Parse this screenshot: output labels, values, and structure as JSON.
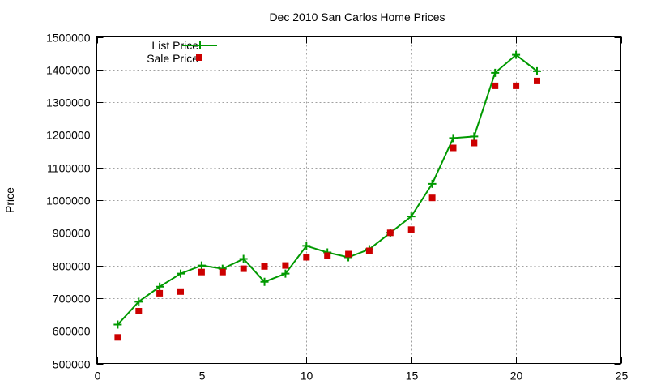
{
  "chart_data": {
    "type": "line",
    "title": "Dec 2010 San Carlos Home Prices",
    "xlabel": "",
    "ylabel": "Price",
    "xlim": [
      0,
      25
    ],
    "ylim": [
      500000,
      1500000
    ],
    "xticks": [
      0,
      5,
      10,
      15,
      20,
      25
    ],
    "yticks": [
      500000,
      600000,
      700000,
      800000,
      900000,
      1000000,
      1100000,
      1200000,
      1300000,
      1400000,
      1500000
    ],
    "grid": true,
    "legend": "top-left",
    "series": [
      {
        "name": "List Price",
        "style": "line-with-plus-markers",
        "color": "#009900",
        "x": [
          1,
          2,
          3,
          4,
          5,
          6,
          7,
          8,
          9,
          10,
          11,
          12,
          13,
          14,
          15,
          16,
          17,
          18,
          19,
          20,
          21
        ],
        "y": [
          619000,
          689000,
          735000,
          775000,
          800000,
          790000,
          820000,
          750000,
          775000,
          860000,
          840000,
          825000,
          850000,
          900000,
          950000,
          1050000,
          1190000,
          1195000,
          1390000,
          1445000,
          1395000
        ]
      },
      {
        "name": "Sale Price",
        "style": "square-markers",
        "color": "#cc0000",
        "x": [
          1,
          2,
          3,
          4,
          5,
          6,
          7,
          8,
          9,
          10,
          11,
          12,
          13,
          14,
          15,
          16,
          17,
          18,
          19,
          20,
          21
        ],
        "y": [
          580000,
          660000,
          715000,
          720000,
          780000,
          780000,
          790000,
          797000,
          800000,
          825000,
          830000,
          835000,
          845000,
          900000,
          910000,
          1007000,
          1160000,
          1175000,
          1350000,
          1350000,
          1365000
        ]
      }
    ]
  }
}
